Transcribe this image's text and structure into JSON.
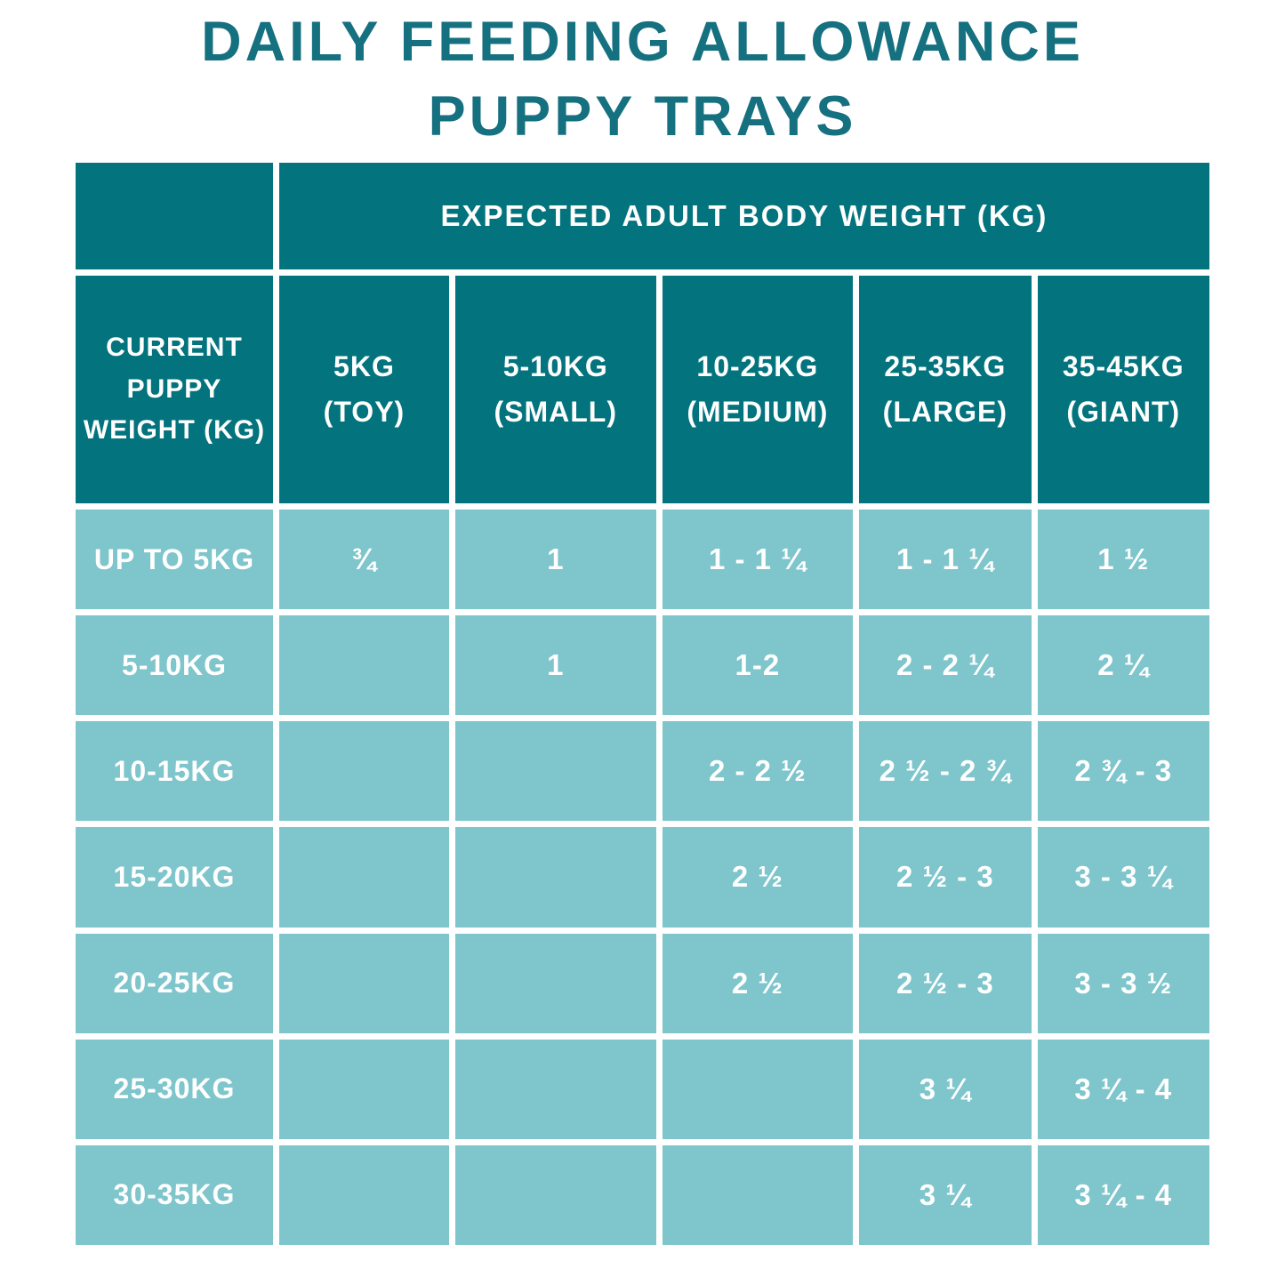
{
  "title": {
    "line1": "DAILY FEEDING ALLOWANCE",
    "line2": "PUPPY TRAYS"
  },
  "colors": {
    "title_color": "#15707F",
    "header_bg": "#03737E",
    "cell_bg": "#7EC5CC",
    "text_color": "#FFFFFF"
  },
  "chart_data": {
    "type": "table",
    "title": "DAILY FEEDING ALLOWANCE PUPPY TRAYS",
    "group_header": "EXPECTED ADULT BODY WEIGHT (KG)",
    "corner_header": "CURRENT PUPPY WEIGHT (KG)",
    "columns": [
      {
        "label": "5KG",
        "sublabel": "(TOY)"
      },
      {
        "label": "5-10KG",
        "sublabel": "(SMALL)"
      },
      {
        "label": "10-25KG",
        "sublabel": "(MEDIUM)"
      },
      {
        "label": "25-35KG",
        "sublabel": "(LARGE)"
      },
      {
        "label": "35-45KG",
        "sublabel": "(GIANT)"
      }
    ],
    "rows": [
      {
        "label": "UP TO 5KG",
        "values": [
          "¾",
          "1",
          "1 - 1 ¼",
          "1 - 1 ¼",
          "1 ½"
        ]
      },
      {
        "label": "5-10KG",
        "values": [
          "",
          "1",
          "1-2",
          "2 - 2 ¼",
          "2 ¼"
        ]
      },
      {
        "label": "10-15KG",
        "values": [
          "",
          "",
          "2 - 2 ½",
          "2 ½ - 2 ¾",
          "2 ¾ - 3"
        ]
      },
      {
        "label": "15-20KG",
        "values": [
          "",
          "",
          "2 ½",
          "2 ½ - 3",
          "3 - 3 ¼"
        ]
      },
      {
        "label": "20-25KG",
        "values": [
          "",
          "",
          "2 ½",
          "2 ½ - 3",
          "3 - 3 ½"
        ]
      },
      {
        "label": "25-30KG",
        "values": [
          "",
          "",
          "",
          "3 ¼",
          "3 ¼ - 4"
        ]
      },
      {
        "label": "30-35KG",
        "values": [
          "",
          "",
          "",
          "3 ¼",
          "3 ¼ - 4"
        ]
      }
    ]
  }
}
